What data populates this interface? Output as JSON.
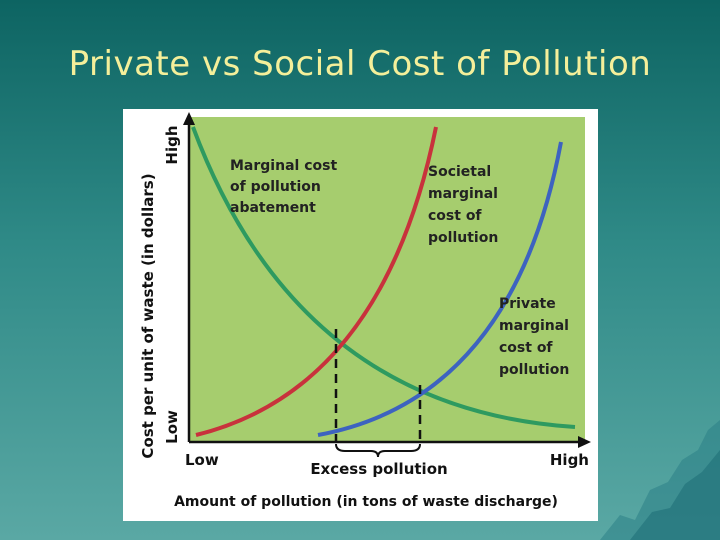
{
  "slide": {
    "title": "Private vs Social Cost of Pollution"
  },
  "diagram": {
    "y_axis": {
      "label": "Cost per unit of waste (in dollars)",
      "high": "High",
      "low": "Low"
    },
    "x_axis": {
      "label": "Amount of pollution (in tons of waste discharge)",
      "low": "Low",
      "high": "High"
    },
    "curves": {
      "abatement": {
        "label_lines": [
          "Marginal cost",
          "of pollution",
          "abatement"
        ],
        "color": "#2e9a60"
      },
      "societal": {
        "label_lines": [
          "Societal",
          "marginal",
          "cost of",
          "pollution"
        ],
        "color": "#c8323c"
      },
      "private": {
        "label_lines": [
          "Private",
          "marginal",
          "cost of",
          "pollution"
        ],
        "color": "#3d63c0"
      }
    },
    "bracket_label": "Excess pollution",
    "plot_color": "#a6cd6e"
  }
}
